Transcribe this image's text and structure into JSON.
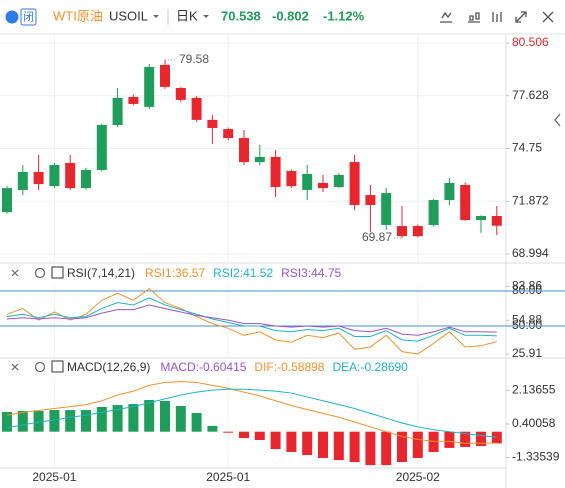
{
  "header": {
    "badge": "闭",
    "name": "WTI原油",
    "symbol": "USOIL",
    "period": "日K",
    "price": 70.538,
    "change": -0.802,
    "change_percent": "-1.12%"
  },
  "chart_data": [
    {
      "type": "candlestick",
      "categories": [
        null,
        null,
        null,
        "2025-01",
        null,
        null,
        null,
        null,
        null,
        null,
        null,
        null,
        null,
        null,
        "2025-01",
        null,
        null,
        null,
        null,
        null,
        null,
        null,
        null,
        null,
        null,
        null,
        "2025-02",
        null,
        null,
        null,
        null,
        null
      ],
      "open": [
        71.28,
        72.49,
        73.47,
        72.7,
        73.96,
        72.59,
        73.58,
        76.03,
        77.56,
        77.02,
        79.31,
        78.05,
        77.51,
        76.31,
        75.81,
        75.32,
        74.01,
        74.29,
        73.52,
        72.49,
        72.87,
        72.65,
        74.01,
        72.21,
        70.58,
        70.52,
        70.52,
        70.58,
        71.94,
        72.76,
        70.85,
        71.07
      ],
      "high": [
        72.7,
        73.85,
        74.4,
        73.96,
        74.4,
        73.7,
        76.1,
        78.05,
        77.7,
        79.355,
        79.58,
        78.1,
        77.6,
        76.58,
        75.9,
        75.76,
        74.94,
        74.67,
        73.6,
        73.85,
        73.31,
        73.4,
        74.4,
        72.76,
        72.59,
        71.61,
        70.6,
        72.0,
        73.14,
        72.9,
        71.1,
        71.61
      ],
      "low": [
        71.2,
        72.21,
        72.49,
        72.6,
        72.49,
        72.5,
        73.5,
        75.92,
        77.1,
        76.9,
        78.0,
        77.3,
        76.2,
        75.0,
        75.2,
        73.85,
        73.85,
        72.1,
        72.6,
        71.94,
        72.38,
        72.6,
        71.39,
        70.19,
        70.3,
        69.87,
        69.9,
        70.5,
        71.67,
        70.8,
        70.145,
        70.03
      ],
      "close": [
        72.59,
        73.47,
        72.81,
        73.85,
        72.59,
        73.58,
        76.03,
        77.51,
        77.18,
        79.2,
        78.11,
        77.4,
        76.31,
        75.87,
        75.32,
        74.01,
        74.29,
        72.65,
        72.7,
        73.36,
        72.59,
        73.31,
        71.67,
        71.67,
        72.32,
        69.97,
        69.97,
        71.94,
        72.87,
        70.85,
        71.07,
        70.538
      ],
      "up_color": "#1f9d5a",
      "down_color": "#e8262d",
      "ylim": [
        68.56,
        80.94
      ],
      "yticks": [
        80.506,
        77.628,
        74.75,
        {
          "value": 71.872,
          "label": "71.872"
        },
        68.994
      ],
      "grid": true
    },
    {
      "type": "line",
      "title": "RSI(7,14,21)",
      "series": [
        {
          "name": "RSI1:36.57",
          "color": "#f0922e",
          "values": [
            60,
            65,
            55,
            62,
            55,
            60,
            72,
            78,
            72,
            82,
            70,
            65,
            58,
            52,
            48,
            42,
            45,
            38,
            36,
            42,
            40,
            44,
            30,
            32,
            42,
            28,
            26,
            35,
            45,
            32,
            33,
            36.57
          ]
        },
        {
          "name": "RSI2:41.52",
          "color": "#1fb3c8",
          "values": [
            58,
            60,
            57,
            60,
            57,
            58,
            65,
            70,
            68,
            74,
            68,
            64,
            60,
            56,
            53,
            50,
            50,
            46,
            45,
            47,
            46,
            48,
            41,
            41,
            46,
            38,
            37,
            42,
            48,
            42,
            42,
            41.52
          ]
        },
        {
          "name": "RSI3:44.75",
          "color": "#9a55c8",
          "values": [
            56,
            57,
            56,
            57,
            56,
            57,
            61,
            64,
            64,
            68,
            65,
            62,
            59,
            57,
            55,
            52,
            52,
            50,
            49,
            50,
            49,
            50,
            46,
            45,
            48,
            43,
            42,
            45,
            49,
            45,
            45,
            44.75
          ]
        }
      ],
      "reference_lines": [
        80,
        50
      ],
      "reference_color": "#4a90d9",
      "ylim": [
        23.4,
        85.1
      ],
      "yticks": [
        {
          "value": 80,
          "label": "80.00"
        },
        83.86,
        54.88,
        {
          "value": 50,
          "label": "50.00"
        },
        25.91
      ]
    },
    {
      "type": "macd",
      "title": "MACD(12,26,9)",
      "series": [
        {
          "name": "MACD:-0.60415",
          "color": "#9a55c8",
          "up_color": "#1f9d5a",
          "down_color": "#e8262d",
          "values": [
            1.02,
            1.07,
            1.07,
            1.12,
            1.12,
            1.12,
            1.28,
            1.38,
            1.43,
            1.64,
            1.59,
            1.33,
            0.97,
            0.3,
            -0.02,
            -0.33,
            -0.43,
            -0.9,
            -1.05,
            -1.21,
            -1.36,
            -1.47,
            -1.57,
            -1.73,
            -1.73,
            -1.57,
            -1.36,
            -1.05,
            -0.84,
            -0.79,
            -0.74,
            -0.60415
          ]
        },
        {
          "name": "DIF:-0.58898",
          "color": "#f0922e",
          "values": [
            0.85,
            1.0,
            1.1,
            1.2,
            1.3,
            1.4,
            1.6,
            1.9,
            2.1,
            2.4,
            2.55,
            2.6,
            2.55,
            2.4,
            2.25,
            2.05,
            1.85,
            1.6,
            1.35,
            1.15,
            0.95,
            0.75,
            0.5,
            0.25,
            0.0,
            -0.25,
            -0.4,
            -0.5,
            -0.5,
            -0.6,
            -0.6,
            -0.58898
          ]
        },
        {
          "name": "DEA:-0.28690",
          "color": "#1fb3c8",
          "values": [
            0.2,
            0.35,
            0.5,
            0.6,
            0.75,
            0.85,
            1.0,
            1.15,
            1.3,
            1.5,
            1.7,
            1.9,
            2.05,
            2.15,
            2.2,
            2.2,
            2.15,
            2.1,
            2.0,
            1.8,
            1.6,
            1.4,
            1.2,
            0.95,
            0.7,
            0.45,
            0.25,
            0.1,
            0.0,
            -0.1,
            -0.2,
            -0.2869
          ]
        }
      ],
      "ylim": [
        -1.88,
        2.78
      ],
      "yticks": [
        2.13655,
        0.40058,
        -1.33539
      ]
    }
  ]
}
